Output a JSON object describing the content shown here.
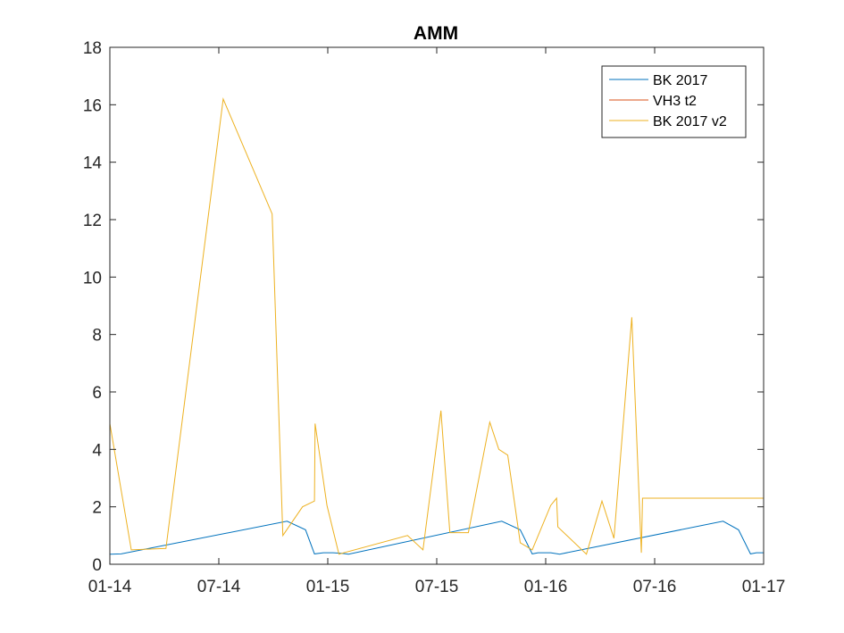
{
  "chart_data": {
    "type": "line",
    "title": "AMM",
    "xlabel": "",
    "ylabel": "",
    "x_ticks": [
      "01-14",
      "07-14",
      "01-15",
      "07-15",
      "01-16",
      "07-16",
      "01-17"
    ],
    "x_range": [
      "2014-01-01",
      "2017-01-01"
    ],
    "ylim": [
      0,
      18
    ],
    "y_ticks": [
      0,
      2,
      4,
      6,
      8,
      10,
      12,
      14,
      16,
      18
    ],
    "grid": false,
    "box": true,
    "legend": {
      "location": "top-right"
    },
    "series": [
      {
        "name": "BK 2017",
        "color": "#0072BD",
        "step": false,
        "points": [
          [
            "2014-01-01",
            0.35
          ],
          [
            "2014-01-20",
            0.36
          ],
          [
            "2014-10-25",
            1.5
          ],
          [
            "2014-11-25",
            1.2
          ],
          [
            "2014-12-10",
            0.36
          ],
          [
            "2014-12-25",
            0.4
          ],
          [
            "2015-01-10",
            0.4
          ],
          [
            "2015-01-25",
            0.38
          ],
          [
            "2015-02-05",
            0.35
          ],
          [
            "2015-10-20",
            1.5
          ],
          [
            "2015-11-20",
            1.2
          ],
          [
            "2015-12-10",
            0.36
          ],
          [
            "2015-12-20",
            0.4
          ],
          [
            "2016-01-10",
            0.4
          ],
          [
            "2016-01-25",
            0.35
          ],
          [
            "2016-10-25",
            1.5
          ],
          [
            "2016-11-20",
            1.2
          ],
          [
            "2016-12-10",
            0.36
          ],
          [
            "2016-12-20",
            0.4
          ],
          [
            "2017-01-01",
            0.4
          ]
        ]
      },
      {
        "name": "VH3 t2",
        "color": "#D95319",
        "step": false,
        "points": []
      },
      {
        "name": "BK 2017 v2",
        "color": "#EDB120",
        "step": true,
        "points": [
          [
            "2014-01-01",
            4.9
          ],
          [
            "2014-02-06",
            0.5
          ],
          [
            "2014-04-05",
            0.55
          ],
          [
            "2014-07-10",
            16.2
          ],
          [
            "2014-09-30",
            12.2
          ],
          [
            "2014-10-18",
            1.0
          ],
          [
            "2014-11-20",
            2.0
          ],
          [
            "2014-12-10",
            2.2
          ],
          [
            "2014-12-11",
            4.9
          ],
          [
            "2014-12-31",
            2.05
          ],
          [
            "2015-01-20",
            0.35
          ],
          [
            "2015-05-15",
            1.0
          ],
          [
            "2015-06-10",
            0.5
          ],
          [
            "2015-07-10",
            5.35
          ],
          [
            "2015-07-25",
            1.1
          ],
          [
            "2015-08-25",
            1.1
          ],
          [
            "2015-09-30",
            4.95
          ],
          [
            "2015-10-15",
            4.0
          ],
          [
            "2015-10-30",
            3.8
          ],
          [
            "2015-11-20",
            0.75
          ],
          [
            "2015-12-10",
            0.5
          ],
          [
            "2016-01-10",
            2.05
          ],
          [
            "2016-01-20",
            2.3
          ],
          [
            "2016-01-22",
            1.3
          ],
          [
            "2016-03-10",
            0.35
          ],
          [
            "2016-04-05",
            2.2
          ],
          [
            "2016-04-25",
            0.9
          ],
          [
            "2016-05-25",
            8.6
          ],
          [
            "2016-06-10",
            0.4
          ],
          [
            "2016-06-12",
            2.3
          ],
          [
            "2017-01-01",
            2.3
          ]
        ]
      }
    ]
  }
}
